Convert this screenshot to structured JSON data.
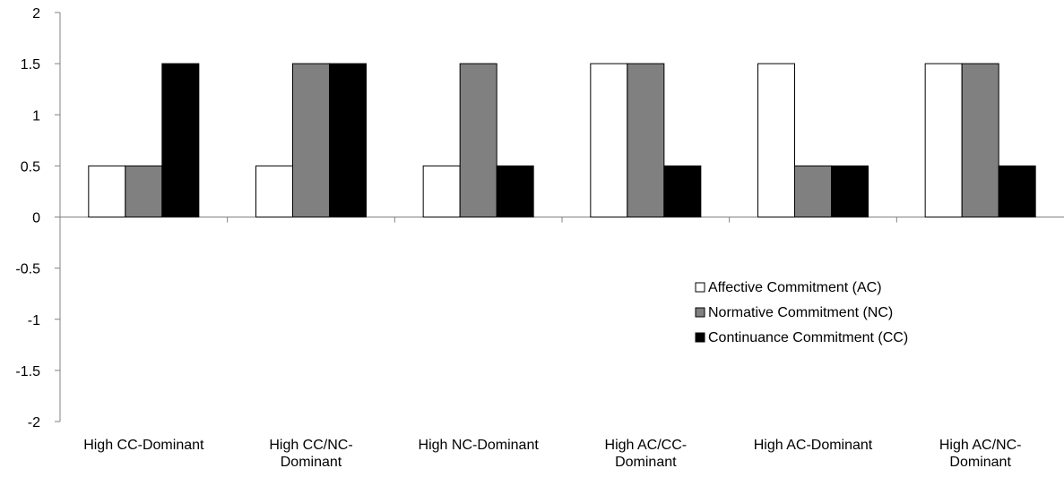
{
  "chart_data": {
    "type": "bar",
    "categories": [
      [
        "High CC-Dominant"
      ],
      [
        "High CC/NC-",
        "Dominant"
      ],
      [
        "High NC-Dominant"
      ],
      [
        "High AC/CC-",
        "Dominant"
      ],
      [
        "High AC-Dominant"
      ],
      [
        "High AC/NC-",
        "Dominant"
      ]
    ],
    "series": [
      {
        "name": "Affective Commitment (AC)",
        "color": "#ffffff",
        "values": [
          0.5,
          0.5,
          0.5,
          1.5,
          1.5,
          1.5
        ]
      },
      {
        "name": "Normative Commitment (NC)",
        "color": "#808080",
        "values": [
          0.5,
          1.5,
          1.5,
          1.5,
          0.5,
          1.5
        ]
      },
      {
        "name": "Continuance Commitment (CC)",
        "color": "#000000",
        "values": [
          1.5,
          1.5,
          0.5,
          0.5,
          0.5,
          0.5
        ]
      }
    ],
    "ylim": [
      -2,
      2
    ],
    "yticks": [
      "2",
      "1.5",
      "1",
      "0.5",
      "0",
      "-0.5",
      "-1",
      "-1.5",
      "-2"
    ],
    "ytick_values": [
      2,
      1.5,
      1,
      0.5,
      0,
      -0.5,
      -1,
      -1.5,
      -2
    ],
    "legend": "right",
    "grid": false,
    "title": "",
    "xlabel": "",
    "ylabel": ""
  }
}
